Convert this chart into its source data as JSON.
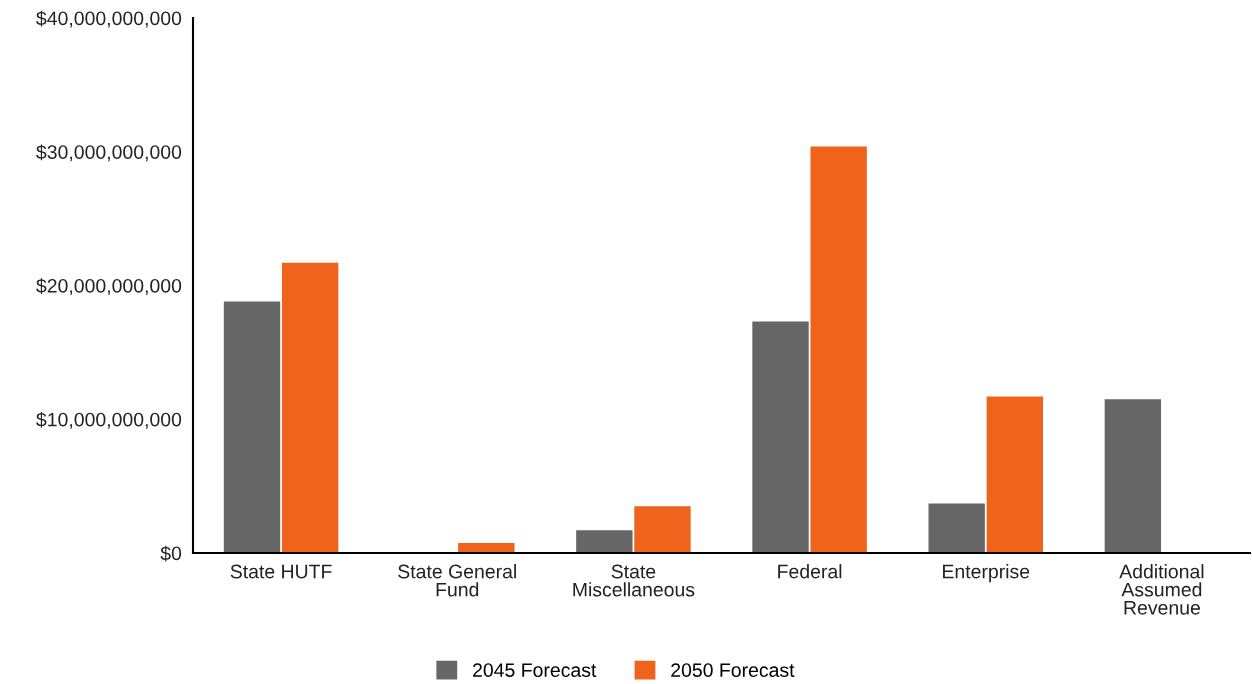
{
  "chart_data": {
    "type": "bar",
    "categories": [
      "State HUTF",
      "State General\nFund",
      "State\nMiscellaneous",
      "Federal",
      "Enterprise",
      "Additional\nAssumed\nRevenue"
    ],
    "series": [
      {
        "name": "2045 Forecast",
        "color": "#666666",
        "values": [
          18800000000,
          null,
          1700000000,
          17300000000,
          3700000000,
          11500000000
        ]
      },
      {
        "name": "2050 Forecast",
        "color": "#ef631c",
        "values": [
          21700000000,
          750000000,
          3500000000,
          30400000000,
          11700000000,
          null
        ]
      }
    ],
    "ylim": [
      0,
      40000000000
    ],
    "yticks": [
      {
        "value": 0,
        "label": "$0"
      },
      {
        "value": 10000000000,
        "label": "$10,000,000,000"
      },
      {
        "value": 20000000000,
        "label": "$20,000,000,000"
      },
      {
        "value": 30000000000,
        "label": "$30,000,000,000"
      },
      {
        "value": 40000000000,
        "label": "$40,000,000,000"
      }
    ],
    "grid": false,
    "legend": "bottom"
  }
}
